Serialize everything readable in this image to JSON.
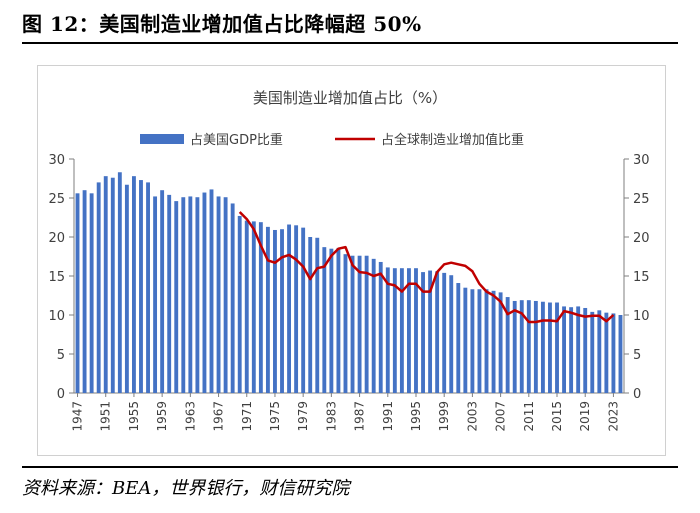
{
  "figure": {
    "title": "图 12：美国制造业增加值占比降幅超 50%",
    "source": "资料来源：BEA，世界银行，财信研究院"
  },
  "chart_data": {
    "type": "bar+line",
    "title": "美国制造业增加值占比（%）",
    "ylim": [
      0,
      30
    ],
    "y_ticks": [
      0,
      5,
      10,
      15,
      20,
      25,
      30
    ],
    "x_tick_labels": [
      "1947",
      "1951",
      "1955",
      "1959",
      "1963",
      "1967",
      "1971",
      "1975",
      "1979",
      "1983",
      "1987",
      "1991",
      "1995",
      "1999",
      "2003",
      "2007",
      "2011",
      "2015",
      "2019",
      "2023"
    ],
    "legend": {
      "position": "top",
      "bar_label": "占美国GDP比重",
      "line_label": "占全球制造业增加值比重"
    },
    "colors": {
      "bar": "#4472c4",
      "line": "#c00000",
      "axis": "#7f7f7f"
    },
    "bar_series": {
      "name": "占美国GDP比重",
      "years": [
        1947,
        1948,
        1949,
        1950,
        1951,
        1952,
        1953,
        1954,
        1955,
        1956,
        1957,
        1958,
        1959,
        1960,
        1961,
        1962,
        1963,
        1964,
        1965,
        1966,
        1967,
        1968,
        1969,
        1970,
        1971,
        1972,
        1973,
        1974,
        1975,
        1976,
        1977,
        1978,
        1979,
        1980,
        1981,
        1982,
        1983,
        1984,
        1985,
        1986,
        1987,
        1988,
        1989,
        1990,
        1991,
        1992,
        1993,
        1994,
        1995,
        1996,
        1997,
        1998,
        1999,
        2000,
        2001,
        2002,
        2003,
        2004,
        2005,
        2006,
        2007,
        2008,
        2009,
        2010,
        2011,
        2012,
        2013,
        2014,
        2015,
        2016,
        2017,
        2018,
        2019,
        2020,
        2021,
        2022,
        2023,
        2024
      ],
      "values": [
        25.6,
        26.0,
        25.6,
        27.0,
        27.8,
        27.6,
        28.3,
        26.7,
        27.8,
        27.3,
        27.0,
        25.2,
        26.0,
        25.4,
        24.6,
        25.1,
        25.2,
        25.1,
        25.7,
        26.1,
        25.2,
        25.1,
        24.3,
        22.7,
        22.1,
        22.0,
        21.9,
        21.3,
        20.9,
        21.0,
        21.6,
        21.5,
        21.2,
        20.0,
        19.9,
        18.7,
        18.5,
        18.6,
        17.8,
        17.6,
        17.6,
        17.6,
        17.2,
        16.8,
        16.1,
        16.0,
        16.0,
        16.0,
        16.0,
        15.5,
        15.7,
        15.6,
        15.4,
        15.1,
        14.1,
        13.5,
        13.3,
        13.3,
        13.3,
        13.1,
        12.9,
        12.3,
        11.8,
        11.9,
        11.9,
        11.8,
        11.7,
        11.6,
        11.6,
        11.1,
        11.0,
        11.1,
        10.9,
        10.4,
        10.6,
        10.3,
        10.2,
        10.0
      ]
    },
    "line_series": {
      "name": "占全球制造业增加值比重",
      "years": [
        1970,
        1971,
        1972,
        1973,
        1974,
        1975,
        1976,
        1977,
        1978,
        1979,
        1980,
        1981,
        1982,
        1983,
        1984,
        1985,
        1986,
        1987,
        1988,
        1989,
        1990,
        1991,
        1992,
        1993,
        1994,
        1995,
        1996,
        1997,
        1998,
        1999,
        2000,
        2001,
        2002,
        2003,
        2004,
        2005,
        2006,
        2007,
        2008,
        2009,
        2010,
        2011,
        2012,
        2013,
        2014,
        2015,
        2016,
        2017,
        2018,
        2019,
        2020,
        2021,
        2022,
        2023
      ],
      "values": [
        23.2,
        22.3,
        21.0,
        18.9,
        17.0,
        16.7,
        17.4,
        17.7,
        17.1,
        16.2,
        14.6,
        16.0,
        16.2,
        17.6,
        18.5,
        18.7,
        16.4,
        15.5,
        15.4,
        15.0,
        15.3,
        14.0,
        13.8,
        13.0,
        14.0,
        14.0,
        13.0,
        13.0,
        15.5,
        16.5,
        16.7,
        16.5,
        16.3,
        15.6,
        14.0,
        13.0,
        12.5,
        11.7,
        10.1,
        10.6,
        10.2,
        9.1,
        9.1,
        9.3,
        9.3,
        9.2,
        10.5,
        10.3,
        10.0,
        9.8,
        9.9,
        9.9,
        9.2,
        10.0
      ]
    }
  }
}
